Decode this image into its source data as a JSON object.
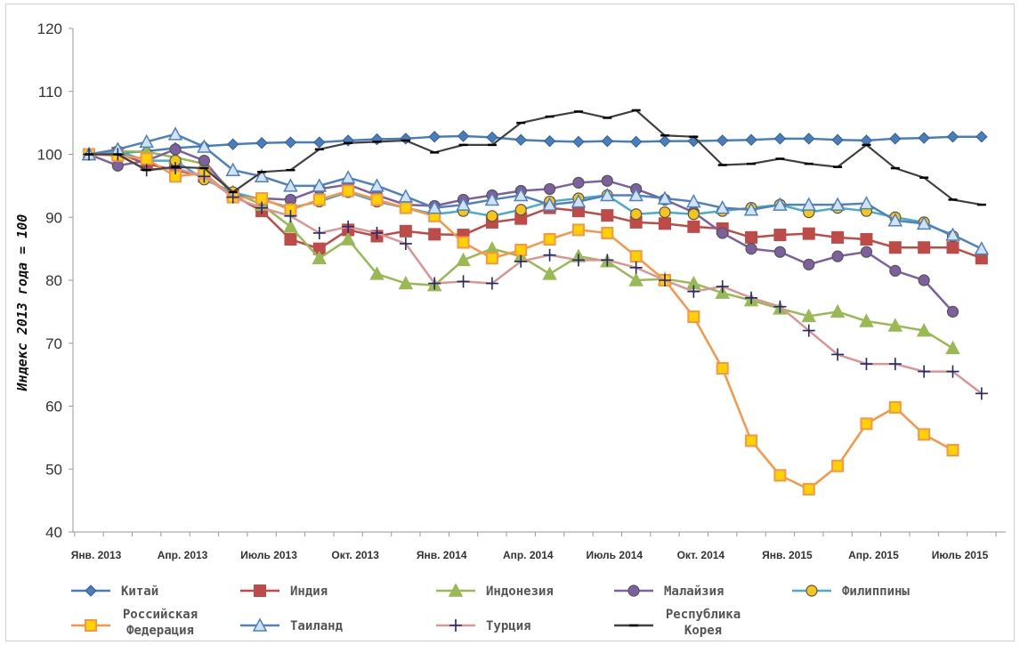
{
  "chart_data": {
    "type": "line",
    "title": "",
    "xlabel": "",
    "ylabel": "Индекс 2013 года = 100",
    "ylim": [
      40,
      120
    ],
    "yticks": [
      40,
      50,
      60,
      70,
      80,
      90,
      100,
      110,
      120
    ],
    "grid": false,
    "legend_position": "bottom",
    "x_tick_labels": [
      {
        "i": 0,
        "label": "Янв. 2013"
      },
      {
        "i": 3,
        "label": "Апр. 2013"
      },
      {
        "i": 6,
        "label": "Июль 2013"
      },
      {
        "i": 9,
        "label": "Окт. 2013"
      },
      {
        "i": 12,
        "label": "Янв. 2014"
      },
      {
        "i": 15,
        "label": "Апр. 2014"
      },
      {
        "i": 18,
        "label": "Июль 2014"
      },
      {
        "i": 21,
        "label": "Окт. 2014"
      },
      {
        "i": 24,
        "label": "Янв. 2015"
      },
      {
        "i": 27,
        "label": "Апр. 2015"
      },
      {
        "i": 30,
        "label": "Июль 2015"
      }
    ],
    "series": [
      {
        "name": "Китай",
        "color": "#4a7ebb",
        "marker": "diamond",
        "fill": "#4a7ebb",
        "values": [
          100,
          100.2,
          100.5,
          101,
          101.3,
          101.6,
          101.8,
          101.9,
          101.9,
          102.2,
          102.4,
          102.5,
          102.8,
          102.9,
          102.7,
          102.3,
          102.1,
          102.0,
          102.1,
          102.0,
          102.1,
          102.1,
          102.2,
          102.3,
          102.5,
          102.5,
          102.3,
          102.2,
          102.5,
          102.6,
          102.8,
          102.8
        ]
      },
      {
        "name": "Индия",
        "color": "#be4b48",
        "marker": "square",
        "fill": "#be4b48",
        "values": [
          100,
          100.2,
          98.5,
          97.5,
          96.5,
          93.5,
          91,
          86.5,
          85,
          88,
          87,
          87.8,
          87.3,
          87.2,
          89.2,
          89.8,
          91.5,
          91,
          90.3,
          89.2,
          89,
          88.5,
          88.2,
          86.8,
          87.2,
          87.4,
          86.8,
          86.5,
          85.2,
          85.2,
          85.2,
          83.5
        ]
      },
      {
        "name": "Индонезия",
        "color": "#98b954",
        "marker": "triangle",
        "fill": "#98b954",
        "values": [
          100,
          100.5,
          100.4,
          99.5,
          98.5,
          94,
          92,
          88.5,
          83.5,
          86.5,
          81,
          79.5,
          79.2,
          83.2,
          85,
          83.8,
          81,
          83.8,
          83,
          80,
          80.2,
          79.5,
          78,
          76.8,
          75.5,
          74.3,
          75,
          73.5,
          72.8,
          72,
          69.2
        ]
      },
      {
        "name": "Малайзия",
        "color": "#7d60a0",
        "marker": "circle",
        "fill": "#7d60a0",
        "values": [
          100,
          98.2,
          99,
          100.8,
          99,
          93.5,
          93,
          92.8,
          94.5,
          95.2,
          93.5,
          92,
          91.8,
          92.8,
          93.5,
          94.2,
          94.5,
          95.5,
          95.8,
          94.5,
          92.8,
          90.8,
          87.5,
          85,
          84.5,
          82.5,
          83.8,
          84.5,
          81.5,
          80,
          75
        ]
      },
      {
        "name": "Филиппины",
        "color": "#4bacc6",
        "marker": "circle",
        "fill": "#f5c518",
        "values": [
          100,
          100.5,
          99,
          99,
          96,
          94,
          92.8,
          91.5,
          92.5,
          94,
          92.5,
          91.5,
          90.5,
          91,
          90.2,
          91.2,
          92.5,
          93,
          93.5,
          90.5,
          90.8,
          90.5,
          91,
          91.5,
          92,
          90.8,
          91.5,
          91,
          90,
          89.2,
          87
        ]
      },
      {
        "name": "Российская Федерация",
        "color": "#f79646",
        "marker": "square",
        "fill": "#ffd200",
        "values": [
          100,
          99.8,
          99.3,
          96.5,
          97,
          93.2,
          93,
          91.2,
          92.8,
          94.2,
          92.8,
          91.5,
          90.2,
          86,
          83.5,
          84.8,
          86.5,
          88,
          87.5,
          83.8,
          80,
          74.2,
          66,
          54.5,
          49,
          46.8,
          50.5,
          57.2,
          59.8,
          55.5,
          53
        ]
      },
      {
        "name": "Таиланд",
        "color": "#4f81bd",
        "marker": "triangle",
        "fill": "#cfe3f5",
        "values": [
          100,
          100.8,
          102,
          103.2,
          101.2,
          97.5,
          96.5,
          95,
          95,
          96.3,
          95,
          93.3,
          91.5,
          92,
          92.8,
          93.5,
          92,
          92.5,
          93.5,
          93.5,
          93,
          92.5,
          91.5,
          91.2,
          92,
          92,
          92,
          92.2,
          89.5,
          89,
          87.2,
          85
        ]
      },
      {
        "name": "Турция",
        "color": "#d99694",
        "marker": "plus",
        "fill": "#1f2a6b",
        "values": [
          100,
          100,
          97.5,
          97.8,
          96.5,
          93.2,
          91.5,
          90.2,
          87.5,
          88.5,
          87.5,
          85.8,
          79.5,
          79.8,
          79.5,
          83,
          84,
          83.2,
          83.2,
          82,
          80,
          78.2,
          79,
          77.2,
          75.8,
          72,
          68.2,
          66.7,
          66.7,
          65.5,
          65.5,
          62
        ]
      },
      {
        "name": "Республика Корея",
        "color": "#404040",
        "marker": "dash",
        "fill": "#000000",
        "values": [
          100,
          100,
          97.5,
          98,
          97.8,
          94,
          97.2,
          97.5,
          100.8,
          101.8,
          102,
          102.2,
          100.3,
          101.5,
          101.5,
          105,
          106,
          106.8,
          105.8,
          107,
          103,
          102.8,
          98.3,
          98.5,
          99.3,
          98.5,
          98,
          101.5,
          97.8,
          96.3,
          92.8,
          92
        ]
      }
    ]
  }
}
